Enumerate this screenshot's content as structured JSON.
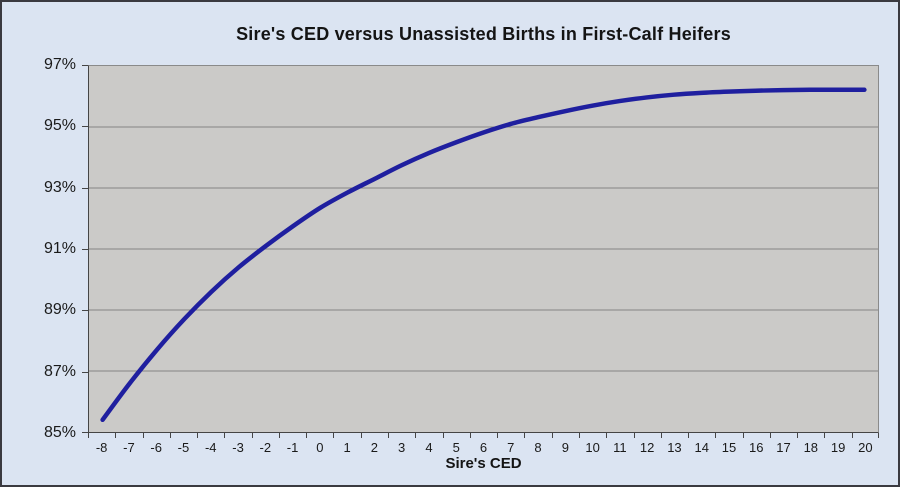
{
  "colors": {
    "background": "#dbe4f2",
    "plot_background": "#cbcac8",
    "line": "#1f1f9f",
    "gridline": "#848484",
    "axis": "#454545",
    "text": "#1a1a1a"
  },
  "chart_data": {
    "type": "line",
    "title": "Sire's CED versus Unassisted Births in First-Calf Heifers",
    "xlabel": "Sire's CED",
    "ylabel": "",
    "x": [
      -8,
      -7,
      -6,
      -5,
      -4,
      -3,
      -2,
      -1,
      0,
      1,
      2,
      3,
      4,
      5,
      6,
      7,
      8,
      9,
      10,
      11,
      12,
      13,
      14,
      15,
      16,
      17,
      18,
      19,
      20
    ],
    "values": [
      85.4,
      86.6,
      87.7,
      88.7,
      89.6,
      90.4,
      91.1,
      91.75,
      92.35,
      92.85,
      93.3,
      93.75,
      94.15,
      94.5,
      94.82,
      95.1,
      95.32,
      95.52,
      95.7,
      95.85,
      95.97,
      96.06,
      96.12,
      96.16,
      96.19,
      96.21,
      96.22,
      96.22,
      96.22
    ],
    "ylim": [
      85,
      97
    ],
    "y_tick_values": [
      97,
      95,
      93,
      91,
      89,
      87,
      85
    ],
    "y_tick_labels": [
      "97%",
      "95%",
      "93%",
      "91%",
      "89%",
      "87%",
      "85%"
    ],
    "grid": "horizontal-major",
    "legend": "none",
    "line_width": 4.5
  }
}
